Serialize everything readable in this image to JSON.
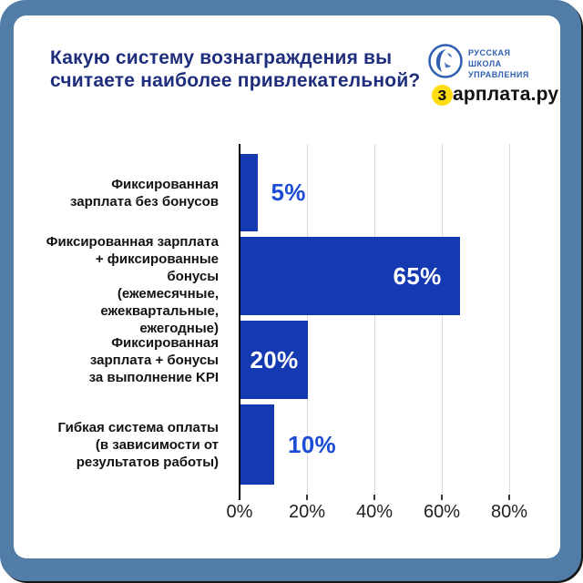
{
  "header": {
    "title": "Какую систему вознаграждения вы\nсчитаете наиболее привлекательной?",
    "logos": {
      "rshu": {
        "name": "Русская школа управления",
        "text": "РУССКАЯ\nШКОЛА\nУПРАВЛЕНИЯ"
      },
      "zarplata": {
        "name": "зарплата.ру",
        "first_letter": "з",
        "rest": "арплата.ру"
      }
    }
  },
  "chart_data": {
    "type": "bar",
    "orientation": "horizontal",
    "title": "Какую систему вознаграждения вы считаете наиболее привлекательной?",
    "categories": [
      "Фиксированная\nзарплата без бонусов",
      "Фиксированная зарплата\n+ фиксированные бонусы\n(ежемесячные,\nежеквартальные,\nежегодные)",
      "Фиксированная\nзарплата + бонусы\nза выполнение KPI",
      "Гибкая система оплаты\n(в зависимости от\nрезультатов работы)"
    ],
    "values": [
      5,
      65,
      20,
      10
    ],
    "value_labels": [
      "5%",
      "65%",
      "20%",
      "10%"
    ],
    "x_ticks": [
      "0%",
      "20%",
      "40%",
      "60%",
      "80%"
    ],
    "xlim": [
      0,
      93
    ],
    "grid": true,
    "legend": false,
    "colors": {
      "bar": "#1539b0",
      "value_label_outside": "#1c4bd4",
      "title": "#1f2e7c",
      "frame": "#527da7",
      "grid": "#d9d9d9",
      "axis": "#000000",
      "rshu_logo": "#2e5fb0",
      "zarplata_accent": "#ffdd15"
    }
  }
}
